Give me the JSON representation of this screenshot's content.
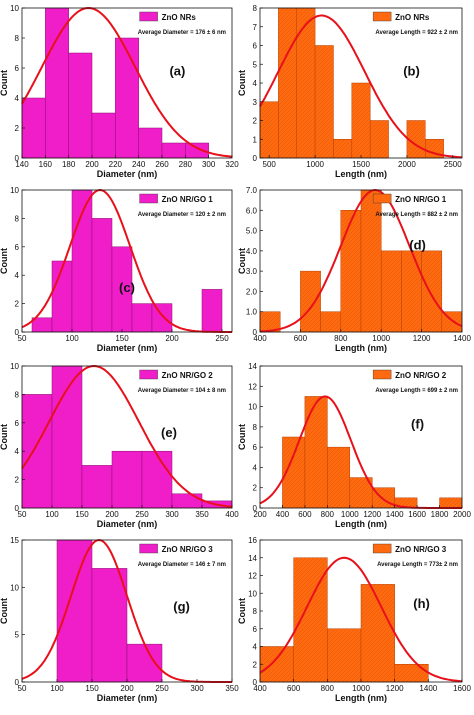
{
  "chart_data": [
    {
      "id": "a",
      "type": "bar",
      "panel_label": "(a)",
      "series_name": "ZnO NRs",
      "annotation": "Average Diameter = 176 ± 6 nm",
      "xlabel": "Diameter (nm)",
      "ylabel": "Count",
      "xlim": [
        140,
        320
      ],
      "ylim": [
        0,
        10
      ],
      "xticks": [
        140,
        160,
        180,
        200,
        220,
        240,
        260,
        280,
        300,
        320
      ],
      "yticks": [
        0,
        2,
        4,
        6,
        8,
        10
      ],
      "bins": [
        [
          140,
          160,
          4
        ],
        [
          160,
          180,
          10
        ],
        [
          180,
          200,
          7
        ],
        [
          200,
          220,
          3
        ],
        [
          220,
          240,
          8
        ],
        [
          240,
          260,
          2
        ],
        [
          260,
          280,
          1
        ],
        [
          280,
          300,
          1
        ]
      ],
      "fit_curve": {
        "type": "normal",
        "mean": 197,
        "peak": 10,
        "sd": 40
      },
      "bar_color": "#f01ec8",
      "curve_color": "#e8101a"
    },
    {
      "id": "b",
      "type": "bar",
      "panel_label": "(b)",
      "series_name": "ZnO NRs",
      "annotation": "Average Length = 922 ± 2 nm",
      "xlabel": "Length (nm)",
      "ylabel": "Count",
      "xlim": [
        400,
        2600
      ],
      "ylim": [
        0,
        8
      ],
      "xticks": [
        500,
        1000,
        1500,
        2000,
        2500
      ],
      "yticks": [
        0,
        1,
        2,
        3,
        4,
        5,
        6,
        7,
        8
      ],
      "bins": [
        [
          400,
          600,
          3
        ],
        [
          600,
          800,
          8
        ],
        [
          800,
          1000,
          8
        ],
        [
          1000,
          1200,
          6
        ],
        [
          1200,
          1400,
          1
        ],
        [
          1400,
          1600,
          4
        ],
        [
          1600,
          1800,
          2
        ],
        [
          1800,
          2000,
          0
        ],
        [
          2000,
          2200,
          2
        ],
        [
          2200,
          2400,
          1
        ]
      ],
      "fit_curve": {
        "type": "normal",
        "mean": 1070,
        "peak": 7.6,
        "sd": 470
      },
      "bar_color": "#ff6a10",
      "curve_color": "#e8101a"
    },
    {
      "id": "c",
      "type": "bar",
      "panel_label": "(c)",
      "series_name": "ZnO NR/GO 1",
      "annotation": "Average Diameter = 120 ± 2 nm",
      "xlabel": "Diameter (nm)",
      "ylabel": "Count",
      "xlim": [
        50,
        260
      ],
      "ylim": [
        0,
        10
      ],
      "xticks": [
        50,
        100,
        150,
        200,
        250
      ],
      "yticks": [
        0,
        2,
        4,
        6,
        8,
        10
      ],
      "bins": [
        [
          60,
          80,
          1
        ],
        [
          80,
          100,
          5
        ],
        [
          100,
          120,
          10
        ],
        [
          120,
          140,
          8
        ],
        [
          140,
          160,
          6
        ],
        [
          160,
          180,
          2
        ],
        [
          180,
          200,
          2
        ],
        [
          230,
          250,
          3
        ]
      ],
      "fit_curve": {
        "type": "normal",
        "mean": 128,
        "peak": 10,
        "sd": 30
      },
      "bar_color": "#f01ec8",
      "curve_color": "#e8101a"
    },
    {
      "id": "d",
      "type": "bar",
      "panel_label": "(d)",
      "series_name": "ZnO NR/GO 1",
      "annotation": "Average Length = 882 ± 2 nm",
      "xlabel": "Length (nm)",
      "ylabel": "Count",
      "xlim": [
        400,
        1400
      ],
      "ylim": [
        0,
        7
      ],
      "xticks": [
        400,
        600,
        800,
        1000,
        1200,
        1400
      ],
      "yticks": [
        0,
        1,
        2,
        3,
        4,
        5,
        6,
        7
      ],
      "yticklabels": [
        "0",
        "1.0",
        "2.0",
        "3.0",
        "4.0",
        "5.0",
        "6.0",
        "7.0"
      ],
      "bins": [
        [
          400,
          500,
          1
        ],
        [
          600,
          700,
          3
        ],
        [
          700,
          800,
          1
        ],
        [
          800,
          900,
          6
        ],
        [
          900,
          1000,
          7
        ],
        [
          1000,
          1100,
          4
        ],
        [
          1100,
          1200,
          4
        ],
        [
          1200,
          1300,
          4
        ],
        [
          1300,
          1400,
          1
        ]
      ],
      "fit_curve": {
        "type": "normal",
        "mean": 970,
        "peak": 7,
        "sd": 170
      },
      "bar_color": "#ff6a10",
      "curve_color": "#e8101a"
    },
    {
      "id": "e",
      "type": "bar",
      "panel_label": "(e)",
      "series_name": "ZnO NR/GO 2",
      "annotation": "Average Diameter = 104 ± 8 nm",
      "xlabel": "Diameter (nm)",
      "ylabel": "Count",
      "xlim": [
        50,
        400
      ],
      "ylim": [
        0,
        10
      ],
      "xticks": [
        50,
        100,
        150,
        200,
        250,
        300,
        350,
        400
      ],
      "yticks": [
        0,
        2,
        4,
        6,
        8,
        10
      ],
      "bins": [
        [
          50,
          100,
          8
        ],
        [
          100,
          150,
          10
        ],
        [
          150,
          200,
          3
        ],
        [
          200,
          250,
          4
        ],
        [
          250,
          300,
          4
        ],
        [
          300,
          350,
          1
        ],
        [
          350,
          400,
          0.5
        ]
      ],
      "fit_curve": {
        "type": "normal",
        "mean": 170,
        "peak": 10,
        "sd": 75
      },
      "bar_color": "#f01ec8",
      "curve_color": "#e8101a"
    },
    {
      "id": "f",
      "type": "bar",
      "panel_label": "(f)",
      "series_name": "ZnO NR/GO 2",
      "annotation": "Average Length = 699 ± 2 nm",
      "xlabel": "Length (nm)",
      "ylabel": "Count",
      "xlim": [
        200,
        2000
      ],
      "ylim": [
        0,
        14
      ],
      "xticks": [
        200,
        400,
        600,
        800,
        1000,
        1200,
        1400,
        1600,
        1800,
        2000
      ],
      "yticks": [
        0,
        2,
        4,
        6,
        8,
        10,
        12,
        14
      ],
      "bins": [
        [
          400,
          600,
          7
        ],
        [
          600,
          800,
          11
        ],
        [
          800,
          1000,
          6
        ],
        [
          1000,
          1200,
          3
        ],
        [
          1200,
          1400,
          2
        ],
        [
          1400,
          1600,
          1
        ],
        [
          1800,
          2000,
          1
        ]
      ],
      "fit_curve": {
        "type": "normal",
        "mean": 780,
        "peak": 11,
        "sd": 230
      },
      "bar_color": "#ff6a10",
      "curve_color": "#e8101a"
    },
    {
      "id": "g",
      "type": "bar",
      "panel_label": "(g)",
      "series_name": "ZnO NR/GO 3",
      "annotation": "Average Diameter = 146 ± 7 nm",
      "xlabel": "Diameter (nm)",
      "ylabel": "Count",
      "xlim": [
        50,
        350
      ],
      "ylim": [
        0,
        15
      ],
      "xticks": [
        50,
        100,
        150,
        200,
        250,
        300,
        350
      ],
      "yticks": [
        0,
        5,
        10,
        15
      ],
      "bins": [
        [
          100,
          150,
          15
        ],
        [
          150,
          200,
          12
        ],
        [
          200,
          250,
          4
        ]
      ],
      "fit_curve": {
        "type": "normal",
        "mean": 160,
        "peak": 15,
        "sd": 40
      },
      "bar_color": "#f01ec8",
      "curve_color": "#e8101a"
    },
    {
      "id": "h",
      "type": "bar",
      "panel_label": "(h)",
      "series_name": "ZnO NR/GO 3",
      "annotation": "Average Length = 773± 2 nm",
      "xlabel": "Length (nm)",
      "ylabel": "Count",
      "xlim": [
        400,
        1600
      ],
      "ylim": [
        0,
        16
      ],
      "xticks": [
        400,
        600,
        800,
        1000,
        1200,
        1400,
        1600
      ],
      "yticks": [
        0,
        2,
        4,
        6,
        8,
        10,
        12,
        14,
        16
      ],
      "bins": [
        [
          400,
          600,
          4
        ],
        [
          600,
          800,
          14
        ],
        [
          800,
          1000,
          6
        ],
        [
          1000,
          1200,
          11
        ],
        [
          1200,
          1400,
          2
        ]
      ],
      "fit_curve": {
        "type": "normal",
        "mean": 900,
        "peak": 14,
        "sd": 220
      },
      "bar_color": "#ff6a10",
      "curve_color": "#e8101a"
    }
  ]
}
